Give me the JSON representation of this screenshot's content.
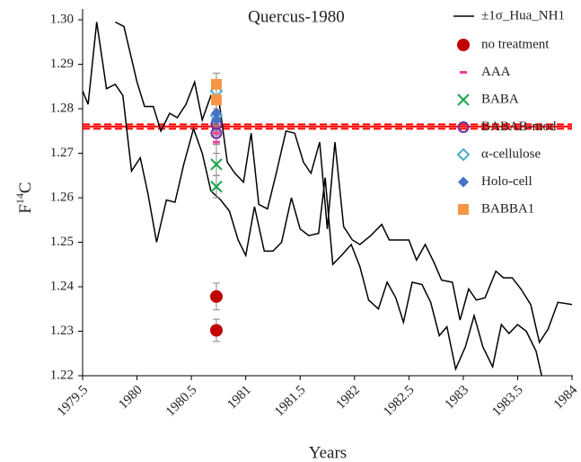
{
  "chart_data": {
    "type": "line-scatter",
    "title": "Quercus-1980",
    "xlabel": "Years",
    "ylabel_parts": [
      "F",
      "14",
      "C"
    ],
    "xlim": [
      1979.5,
      1984
    ],
    "xticks": [
      1979.5,
      1980,
      1980.5,
      1981,
      1981.5,
      1982,
      1982.5,
      1983,
      1983.5,
      1984
    ],
    "ylim": [
      1.22,
      1.3
    ],
    "yticks": [
      1.22,
      1.23,
      1.24,
      1.25,
      1.26,
      1.27,
      1.28,
      1.29,
      {
        "value": 1.3,
        "label": "1.30"
      }
    ],
    "band": {
      "name": "±1σ_Hua_NH1",
      "color": "#000000",
      "upper": {
        "x": [
          1979.8,
          1979.88,
          1980.0,
          1980.07,
          1980.15,
          1980.22,
          1980.3,
          1980.37,
          1980.45,
          1980.53,
          1980.6,
          1980.68,
          1980.75,
          1980.83,
          1980.9,
          1980.98,
          1981.05,
          1981.12,
          1981.2,
          1981.28,
          1981.37,
          1981.45,
          1981.53,
          1981.6,
          1981.68,
          1981.75,
          1981.82,
          1981.9,
          1981.98,
          1982.05,
          1982.15,
          1982.25,
          1982.32,
          1982.42,
          1982.5,
          1982.57,
          1982.65,
          1982.73,
          1982.8,
          1982.9,
          1982.97,
          1983.05,
          1983.12,
          1983.2,
          1983.3,
          1983.37,
          1983.45,
          1983.53,
          1983.62,
          1983.7,
          1983.78,
          1983.87,
          1984.0
        ],
        "values": [
          1.2995,
          1.2985,
          1.286,
          1.2805,
          1.2805,
          1.275,
          1.279,
          1.278,
          1.281,
          1.286,
          1.2775,
          1.283,
          1.2825,
          1.268,
          1.2655,
          1.2635,
          1.2745,
          1.2585,
          1.2575,
          1.2655,
          1.275,
          1.2745,
          1.268,
          1.2655,
          1.2725,
          1.253,
          1.2725,
          1.2535,
          1.2505,
          1.2495,
          1.2515,
          1.254,
          1.2505,
          1.2505,
          1.2505,
          1.246,
          1.2495,
          1.2455,
          1.2415,
          1.241,
          1.2325,
          1.2395,
          1.237,
          1.2375,
          1.2435,
          1.242,
          1.242,
          1.2395,
          1.236,
          1.2275,
          1.2305,
          1.2365,
          1.236
        ]
      },
      "lower": {
        "x": [
          1979.5,
          1979.55,
          1979.63,
          1979.72,
          1979.8,
          1979.87,
          1979.95,
          1980.03,
          1980.1,
          1980.18,
          1980.27,
          1980.35,
          1980.43,
          1980.52,
          1980.6,
          1980.68,
          1980.77,
          1980.85,
          1980.93,
          1981.0,
          1981.08,
          1981.17,
          1981.25,
          1981.33,
          1981.42,
          1981.5,
          1981.58,
          1981.67,
          1981.73,
          1981.8,
          1981.88,
          1981.97,
          1982.05,
          1982.13,
          1982.22,
          1982.3,
          1982.38,
          1982.45,
          1982.53,
          1982.62,
          1982.7,
          1982.78,
          1982.85,
          1982.93,
          1983.02,
          1983.1,
          1983.18,
          1983.27,
          1983.35,
          1983.42,
          1983.5,
          1983.58,
          1983.67,
          1983.73
        ],
        "values": [
          1.284,
          1.281,
          1.2995,
          1.2845,
          1.2855,
          1.283,
          1.266,
          1.269,
          1.261,
          1.25,
          1.2595,
          1.259,
          1.2675,
          1.2755,
          1.27,
          1.2615,
          1.2595,
          1.257,
          1.2505,
          1.247,
          1.258,
          1.248,
          1.248,
          1.25,
          1.26,
          1.253,
          1.2515,
          1.252,
          1.2645,
          1.245,
          1.247,
          1.2495,
          1.2445,
          1.237,
          1.235,
          1.241,
          1.2375,
          1.232,
          1.241,
          1.2405,
          1.2365,
          1.229,
          1.231,
          1.2215,
          1.2265,
          1.2335,
          1.2265,
          1.222,
          1.2315,
          1.2295,
          1.2315,
          1.23,
          1.2255,
          1.219
        ]
      }
    },
    "reference": {
      "value": 1.276,
      "error": 0.0005,
      "color": "#ff0000"
    },
    "series": [
      {
        "name": "no treatment",
        "color": "#c00000",
        "marker": "circle",
        "x": 1980.73,
        "values": [
          1.2378,
          1.2302
        ],
        "errors": [
          0.003,
          0.0025
        ]
      },
      {
        "name": "AAA",
        "color": "#e8409a",
        "marker": "dash",
        "x": 1980.73,
        "values": [
          1.2725,
          1.2745
        ],
        "errors": [
          0.0025,
          0.0025
        ]
      },
      {
        "name": "BABA",
        "color": "#1aa64a",
        "marker": "x",
        "x": 1980.73,
        "values": [
          1.2675,
          1.2625
        ],
        "errors": [
          0.0025,
          0.0025
        ]
      },
      {
        "name": "BABAB-mod",
        "color": "#7030a0",
        "marker": "open-circle",
        "x": 1980.73,
        "values": [
          1.2745,
          1.2765
        ],
        "errors": [
          0.0025,
          0.0025
        ]
      },
      {
        "name": "α-cellulose",
        "color": "#4bacc6",
        "marker": "open-diamond",
        "x": 1980.73,
        "values": [
          1.284,
          1.2785
        ],
        "errors": [
          0.0025,
          0.0025
        ]
      },
      {
        "name": "Holo-cell",
        "color": "#4472c4",
        "marker": "diamond",
        "x": 1980.73,
        "values": [
          1.279,
          1.2775
        ],
        "errors": [
          0.0025,
          0.0025
        ]
      },
      {
        "name": "BABBA1",
        "color": "#f79646",
        "marker": "square",
        "x": 1980.73,
        "values": [
          1.2855,
          1.282
        ],
        "errors": [
          0.0025,
          0.0025
        ]
      }
    ]
  }
}
